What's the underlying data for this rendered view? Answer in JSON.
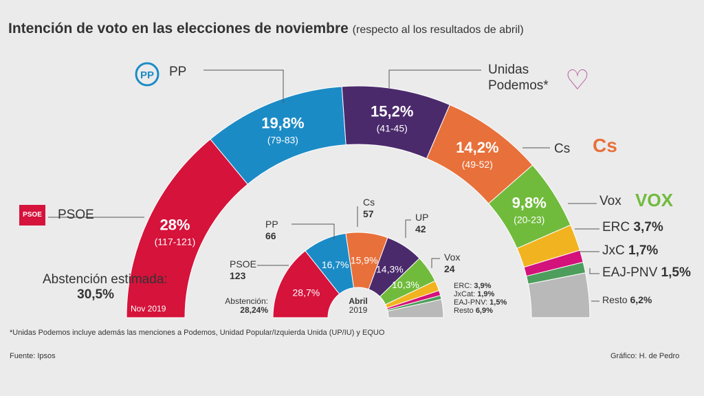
{
  "chart_data": [
    {
      "type": "pie",
      "variant": "semicircle-donut",
      "title": "Intención de voto en las elecciones de noviembre",
      "subtitle": "(respecto al los resultados de abril)",
      "center_label": "Nov 2019",
      "categories": [
        "PSOE",
        "PP",
        "Unidas Podemos",
        "Cs",
        "Vox",
        "ERC",
        "JxC",
        "EAJ-PNV",
        "Resto"
      ],
      "values": [
        28,
        19.8,
        15.2,
        14.2,
        9.8,
        3.7,
        1.7,
        1.5,
        6.2
      ],
      "value_labels": [
        "28%",
        "19,8%",
        "15,2%",
        "14,2%",
        "9,8%",
        "3,7%",
        "1,7%",
        "1,5%",
        "6,2%"
      ],
      "seats": [
        "(117-121)",
        "(79-83)",
        "(41-45)",
        "(49-52)",
        "(20-23)",
        "",
        "",
        "",
        ""
      ],
      "colors": [
        "#d5133b",
        "#1b8bc6",
        "#4b2a6c",
        "#e8703b",
        "#70bb3c",
        "#f2b320",
        "#d3127b",
        "#4d9e5c",
        "#b9b9b9"
      ],
      "abstention_label": "Abstención estimada:",
      "abstention": "30,5%"
    },
    {
      "type": "pie",
      "variant": "semicircle-donut",
      "center_label": [
        "Abril",
        "2019"
      ],
      "categories": [
        "PSOE",
        "PP",
        "Cs",
        "UP",
        "Vox",
        "ERC",
        "JxCat",
        "EAJ-PNV",
        "Resto"
      ],
      "values": [
        28.7,
        16.7,
        15.9,
        14.3,
        10.3,
        3.9,
        1.9,
        1.5,
        6.9
      ],
      "value_labels": [
        "28,7%",
        "16,7%",
        "15,9%",
        "14,3%",
        "10,3%",
        "3,9%",
        "1,9%",
        "1,5%",
        "6,9%"
      ],
      "seats": [
        "123",
        "66",
        "57",
        "42",
        "24",
        "",
        "",
        "",
        ""
      ],
      "colors": [
        "#d5133b",
        "#1b8bc6",
        "#e8703b",
        "#4b2a6c",
        "#70bb3c",
        "#f2b320",
        "#d3127b",
        "#4d9e5c",
        "#b9b9b9"
      ],
      "abstention_label": "Abstención:",
      "abstention": "28,24%"
    }
  ],
  "labels": {
    "pp": "PP",
    "up1": "Unidas",
    "up2": "Podemos*",
    "cs": "Cs",
    "vox": "Vox",
    "erc": "ERC",
    "jxc": "JxC",
    "pnv": "EAJ-PNV",
    "resto": "Resto",
    "psoe": "PSOE",
    "logo_pp": "PP",
    "logo_cs": "Cs",
    "logo_vox": "VOX",
    "logo_psoe": "PSOE",
    "small_erc": "ERC:",
    "small_jxcat": "JxCat:",
    "small_pnv": "EAJ-PNV:",
    "small_resto": "Resto"
  },
  "footnote": "*Unidas Podemos incluye además las menciones a  Podemos, Unidad Popular/Izquierda Unida (UP/IU) y EQUO",
  "source": "Fuente: Ipsos",
  "credit": "Gráfico: H. de Pedro"
}
